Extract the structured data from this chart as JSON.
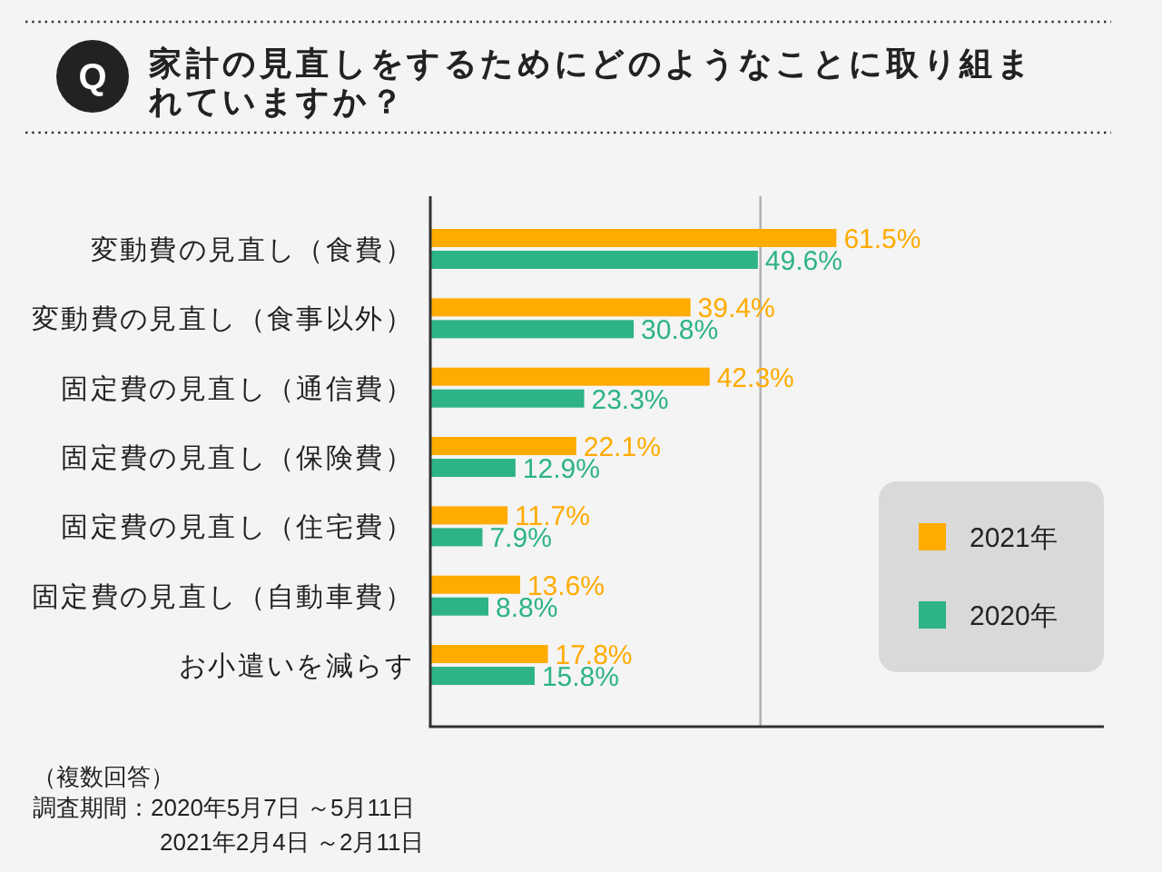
{
  "chart_data": {
    "type": "bar",
    "orientation": "horizontal",
    "title": "家計の見直しをするためにどのようなことに取り組まれていますか？",
    "categories": [
      "変動費の見直し（食費）",
      "変動費の見直し（食事以外）",
      "固定費の見直し（通信費）",
      "固定費の見直し（保険費）",
      "固定費の見直し（住宅費）",
      "固定費の見直し（自動車費）",
      "お小遣いを減らす"
    ],
    "series": [
      {
        "name": "2021年",
        "color": "#ffab00",
        "values": [
          61.5,
          39.4,
          42.3,
          22.1,
          11.7,
          13.6,
          17.8
        ],
        "value_labels": [
          "61.5%",
          "39.4%",
          "42.3%",
          "22.1%",
          "11.7%",
          "13.6%",
          "17.8%"
        ]
      },
      {
        "name": "2020年",
        "color": "#2db386",
        "values": [
          49.6,
          30.8,
          23.3,
          12.9,
          7.9,
          8.8,
          15.8
        ],
        "value_labels": [
          "49.6%",
          "30.8%",
          "23.3%",
          "12.9%",
          "7.9%",
          "8.8%",
          "15.8%"
        ]
      }
    ],
    "xlim": [
      0,
      102
    ],
    "tick_labels": "y",
    "ref_lines": [
      {
        "axis": "x",
        "value": 50,
        "color": "#b3b3b3"
      }
    ],
    "legend": "right",
    "annotations": [
      "Q",
      "（複数回答）",
      "調査期間：2020年5月7日 ～5月11日",
      "2021年2月4日 ～2月11日"
    ]
  }
}
